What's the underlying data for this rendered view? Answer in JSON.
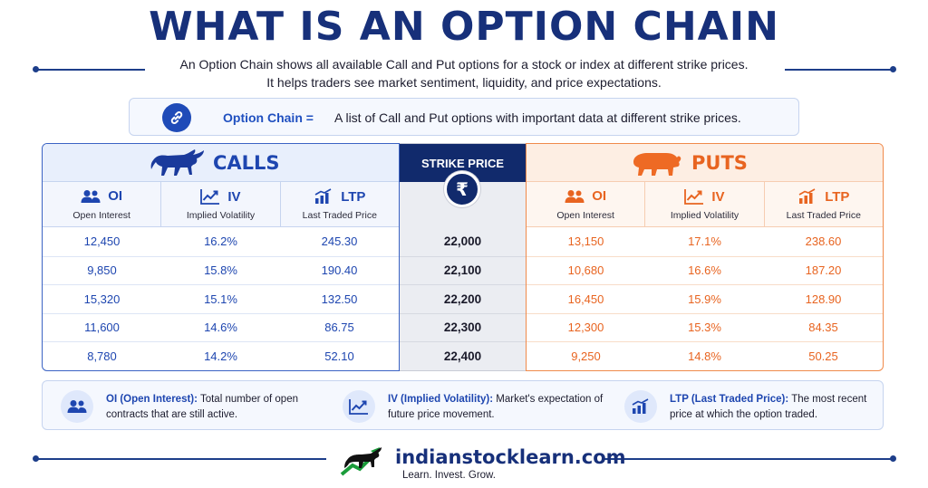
{
  "title": "WHAT IS AN OPTION CHAIN",
  "subtitle_lines": [
    "An Option Chain shows all available Call and Put options for a stock or index at different strike prices.",
    "It helps traders see market sentiment, liquidity, and price expectations."
  ],
  "definition": {
    "icon": "link-icon",
    "term": "Option Chain =",
    "text": "A list of Call and Put options with important data at different strike prices."
  },
  "calls": {
    "label": "CALLS",
    "icon": "bull-icon",
    "columns": [
      {
        "title": "OI",
        "sub": "Open Interest",
        "icon": "people-icon"
      },
      {
        "title": "IV",
        "sub": "Implied Volatility",
        "icon": "line-chart-icon"
      },
      {
        "title": "LTP",
        "sub": "Last Traded Price",
        "icon": "bar-chart-icon"
      }
    ],
    "rows": [
      [
        "12,450",
        "16.2%",
        "245.30"
      ],
      [
        "9,850",
        "15.8%",
        "190.40"
      ],
      [
        "15,320",
        "15.1%",
        "132.50"
      ],
      [
        "11,600",
        "14.6%",
        "86.75"
      ],
      [
        "8,780",
        "14.2%",
        "52.10"
      ]
    ]
  },
  "strike": {
    "label": "STRIKE PRICE",
    "icon": "rupee-icon",
    "symbol": "₹",
    "values": [
      "22,000",
      "22,100",
      "22,200",
      "22,300",
      "22,400"
    ]
  },
  "puts": {
    "label": "PUTS",
    "icon": "bear-icon",
    "columns": [
      {
        "title": "OI",
        "sub": "Open Interest",
        "icon": "people-icon"
      },
      {
        "title": "IV",
        "sub": "Implied Volatility",
        "icon": "line-chart-icon"
      },
      {
        "title": "LTP",
        "sub": "Last Traded Price",
        "icon": "bar-chart-icon"
      }
    ],
    "rows": [
      [
        "13,150",
        "17.1%",
        "238.60"
      ],
      [
        "10,680",
        "16.6%",
        "187.20"
      ],
      [
        "16,450",
        "15.9%",
        "128.90"
      ],
      [
        "12,300",
        "15.3%",
        "84.35"
      ],
      [
        "9,250",
        "14.8%",
        "50.25"
      ]
    ]
  },
  "legend": [
    {
      "term": "OI (Open Interest):",
      "text": "Total number of open contracts that are still active.",
      "icon": "people-icon"
    },
    {
      "term": "IV (Implied Volatility):",
      "text": "Market's expectation of future price movement.",
      "icon": "line-chart-icon"
    },
    {
      "term": "LTP (Last Traded Price):",
      "text": "The most recent price at which the option traded.",
      "icon": "bar-chart-icon"
    }
  ],
  "brand": {
    "name": "indianstocklearn.com",
    "tagline": "Learn. Invest. Grow.",
    "logo_icon": "bull-logo-icon"
  },
  "colors": {
    "calls_accent": "#1e46b0",
    "puts_accent": "#e86420",
    "strike_header": "#112a6c",
    "title": "#17307a"
  }
}
